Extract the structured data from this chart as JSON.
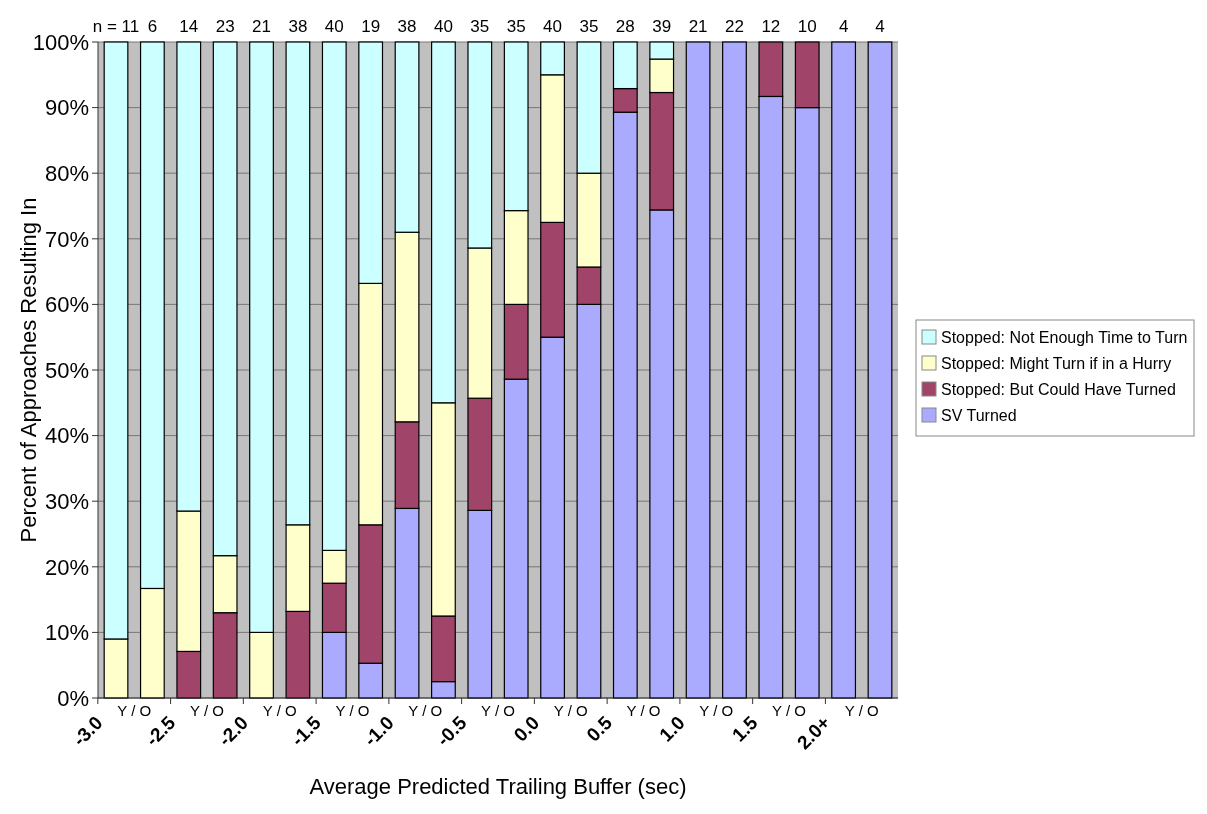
{
  "chart_data": {
    "type": "bar",
    "stacked": true,
    "xlabel": "Average Predicted Trailing Buffer (sec)",
    "ylabel": "Percent of Approaches Resulting In",
    "categories": [
      null,
      null,
      null,
      null,
      null,
      null,
      null,
      null,
      null,
      null,
      null,
      null,
      null,
      null,
      null,
      null,
      null,
      null,
      null,
      null,
      null,
      null
    ],
    "series": [
      {
        "name": "SV Turned",
        "color": "#aaaaff",
        "values": [
          0,
          0,
          0,
          0,
          0,
          0,
          10,
          5.3,
          28.9,
          2.5,
          28.6,
          48.6,
          55,
          60,
          89.3,
          74.4,
          100,
          100,
          91.7,
          90,
          100,
          100
        ]
      },
      {
        "name": "Stopped: But Could Have Turned",
        "color": "#a0446a",
        "values": [
          0,
          0,
          7.1,
          13,
          0,
          13.2,
          7.5,
          21.1,
          13.2,
          10,
          17.1,
          11.4,
          17.5,
          5.7,
          3.6,
          17.9,
          0,
          0,
          8.3,
          10,
          0,
          0
        ]
      },
      {
        "name": "Stopped: Might Turn if in a Hurry",
        "color": "#ffffcc",
        "values": [
          9,
          16.7,
          21.4,
          8.7,
          10,
          13.2,
          5,
          36.8,
          28.9,
          32.5,
          22.9,
          14.3,
          22.5,
          14.3,
          0,
          5.1,
          0,
          0,
          0,
          0,
          0,
          0
        ]
      },
      {
        "name": "Stopped: Not Enough Time to Turn",
        "color": "#ccffff",
        "values": [
          91,
          83.3,
          71.5,
          78.3,
          90,
          73.6,
          77.5,
          36.8,
          29,
          55,
          31.4,
          25.7,
          5,
          20,
          7.1,
          2.6,
          0,
          0,
          0,
          0,
          0,
          0
        ]
      }
    ],
    "ylim": [
      0,
      100
    ],
    "yticks": [
      {
        "value": 0,
        "label": "0%"
      },
      {
        "value": 10,
        "label": "10%"
      },
      {
        "value": 20,
        "label": "20%"
      },
      {
        "value": 30,
        "label": "30%"
      },
      {
        "value": 40,
        "label": "40%"
      },
      {
        "value": 50,
        "label": "50%"
      },
      {
        "value": 60,
        "label": "60%"
      },
      {
        "value": 70,
        "label": "70%"
      },
      {
        "value": 80,
        "label": "80%"
      },
      {
        "value": 90,
        "label": "90%"
      },
      {
        "value": 100,
        "label": "100%"
      }
    ],
    "grid": "y",
    "legend": "right",
    "annotations": [
      "n = 11",
      "6",
      "14",
      "23",
      "21",
      "38",
      "40",
      "19",
      "38",
      "40",
      "35",
      "35",
      "40",
      "35",
      "28",
      "39",
      "21",
      "22",
      "12",
      "10",
      "4",
      "4",
      "Y / O",
      "Y / O",
      "Y / O",
      "Y / O",
      "Y / O",
      "Y / O",
      "Y / O",
      "Y / O",
      "Y / O",
      "Y / O",
      "Y / O",
      "-3.0",
      "-2.5",
      "-2.0",
      "-1.5",
      "-1.0",
      "-0.5",
      "0.0",
      "0.5",
      "1.0",
      "1.5",
      "2.0+"
    ]
  }
}
